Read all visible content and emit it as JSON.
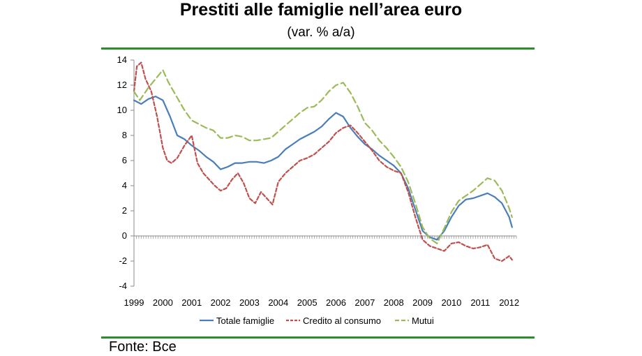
{
  "chart_data": {
    "type": "line",
    "title": "Prestiti alle famiglie nell’area euro",
    "subtitle": "(var. % a/a)",
    "source": "Fonte: Bce",
    "xlabel": "",
    "ylabel": "",
    "xlim": [
      1999.0,
      2012.25
    ],
    "ylim": [
      -4,
      14
    ],
    "y_ticks": [
      -4,
      -2,
      0,
      2,
      4,
      6,
      8,
      10,
      12,
      14
    ],
    "x_tick_labels": [
      "1999",
      "2000",
      "2001",
      "2002",
      "2003",
      "2004",
      "2005",
      "2006",
      "2007",
      "2008",
      "2009",
      "2010",
      "2011",
      "2012"
    ],
    "grid": false,
    "legend_position": "bottom",
    "series": [
      {
        "name": "Totale famiglie",
        "color": "#4a7ebb",
        "style": "solid",
        "x": [
          1999.0,
          1999.25,
          1999.5,
          1999.75,
          2000.0,
          2000.25,
          2000.5,
          2000.75,
          2001.0,
          2001.25,
          2001.5,
          2001.75,
          2002.0,
          2002.25,
          2002.5,
          2002.75,
          2003.0,
          2003.25,
          2003.5,
          2003.75,
          2004.0,
          2004.25,
          2004.5,
          2004.75,
          2005.0,
          2005.25,
          2005.5,
          2005.75,
          2006.0,
          2006.25,
          2006.5,
          2006.75,
          2007.0,
          2007.25,
          2007.5,
          2007.75,
          2008.0,
          2008.25,
          2008.5,
          2008.75,
          2009.0,
          2009.25,
          2009.5,
          2009.75,
          2010.0,
          2010.25,
          2010.5,
          2010.75,
          2011.0,
          2011.25,
          2011.5,
          2011.75,
          2012.0,
          2012.1
        ],
        "values": [
          10.8,
          10.5,
          10.9,
          11.1,
          10.8,
          9.5,
          8.0,
          7.7,
          7.2,
          6.8,
          6.3,
          5.9,
          5.3,
          5.5,
          5.8,
          5.8,
          5.9,
          5.9,
          5.8,
          6.0,
          6.3,
          6.9,
          7.3,
          7.7,
          8.0,
          8.3,
          8.7,
          9.3,
          9.8,
          9.5,
          8.6,
          7.9,
          7.3,
          6.9,
          6.4,
          6.0,
          5.6,
          5.0,
          3.8,
          2.1,
          0.4,
          -0.1,
          -0.3,
          0.4,
          1.5,
          2.4,
          2.9,
          3.0,
          3.2,
          3.4,
          3.1,
          2.6,
          1.5,
          0.7
        ]
      },
      {
        "name": "Credito al consumo",
        "color": "#c0504d",
        "style": "dashed",
        "x": [
          1999.0,
          1999.1,
          1999.25,
          1999.4,
          1999.6,
          1999.8,
          2000.0,
          2000.15,
          2000.3,
          2000.5,
          2000.75,
          2001.0,
          2001.2,
          2001.4,
          2001.6,
          2001.8,
          2002.0,
          2002.2,
          2002.4,
          2002.6,
          2002.8,
          2003.0,
          2003.2,
          2003.4,
          2003.6,
          2003.8,
          2004.0,
          2004.25,
          2004.5,
          2004.75,
          2005.0,
          2005.25,
          2005.5,
          2005.75,
          2006.0,
          2006.25,
          2006.5,
          2006.75,
          2007.0,
          2007.25,
          2007.5,
          2007.75,
          2008.0,
          2008.25,
          2008.5,
          2008.75,
          2009.0,
          2009.25,
          2009.5,
          2009.75,
          2010.0,
          2010.25,
          2010.5,
          2010.75,
          2011.0,
          2011.25,
          2011.5,
          2011.75,
          2012.0,
          2012.1
        ],
        "values": [
          11.5,
          13.5,
          13.8,
          12.5,
          11.5,
          9.5,
          7.0,
          6.0,
          5.8,
          6.2,
          7.2,
          8.0,
          5.8,
          5.0,
          4.5,
          4.0,
          3.6,
          3.8,
          4.5,
          5.0,
          4.2,
          3.0,
          2.6,
          3.5,
          3.0,
          2.5,
          4.3,
          5.0,
          5.5,
          6.0,
          6.2,
          6.5,
          7.0,
          7.5,
          8.2,
          8.6,
          8.8,
          8.2,
          7.5,
          6.8,
          6.0,
          5.5,
          5.2,
          5.0,
          3.5,
          1.5,
          -0.3,
          -0.8,
          -1.0,
          -1.2,
          -0.6,
          -0.5,
          -0.8,
          -1.0,
          -0.9,
          -0.7,
          -1.8,
          -2.0,
          -1.6,
          -1.9
        ]
      },
      {
        "name": "Mutui",
        "color": "#9bbb59",
        "style": "dashed",
        "x": [
          1999.0,
          1999.2,
          1999.5,
          1999.75,
          2000.0,
          2000.2,
          2000.5,
          2000.75,
          2001.0,
          2001.25,
          2001.5,
          2001.75,
          2002.0,
          2002.25,
          2002.5,
          2002.75,
          2003.0,
          2003.25,
          2003.5,
          2003.75,
          2004.0,
          2004.25,
          2004.5,
          2004.75,
          2005.0,
          2005.25,
          2005.5,
          2005.75,
          2006.0,
          2006.25,
          2006.5,
          2006.75,
          2007.0,
          2007.25,
          2007.5,
          2007.75,
          2008.0,
          2008.25,
          2008.5,
          2008.75,
          2009.0,
          2009.25,
          2009.5,
          2009.75,
          2010.0,
          2010.25,
          2010.5,
          2010.75,
          2011.0,
          2011.25,
          2011.5,
          2011.75,
          2012.0,
          2012.1
        ],
        "values": [
          11.5,
          10.8,
          11.8,
          12.5,
          13.2,
          12.2,
          11.0,
          10.0,
          9.2,
          8.9,
          8.6,
          8.4,
          7.8,
          7.8,
          8.0,
          7.9,
          7.6,
          7.6,
          7.7,
          7.8,
          8.3,
          8.8,
          9.3,
          9.8,
          10.2,
          10.3,
          10.8,
          11.5,
          12.0,
          12.2,
          11.4,
          10.3,
          9.0,
          8.4,
          7.6,
          7.0,
          6.3,
          5.5,
          4.3,
          2.6,
          0.7,
          -0.2,
          -0.6,
          0.6,
          1.9,
          2.8,
          3.2,
          3.6,
          4.1,
          4.6,
          4.4,
          3.6,
          2.2,
          1.5
        ]
      }
    ]
  }
}
